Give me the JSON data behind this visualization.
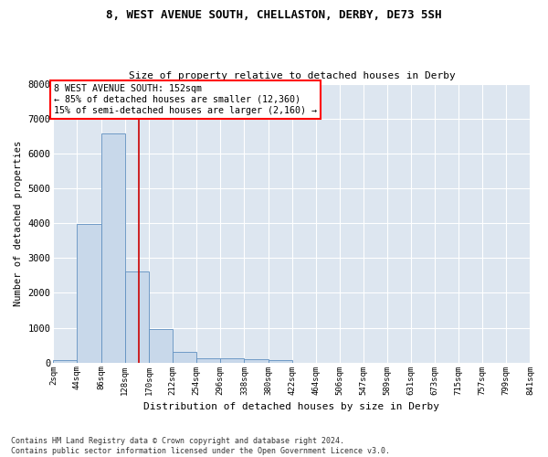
{
  "title": "8, WEST AVENUE SOUTH, CHELLASTON, DERBY, DE73 5SH",
  "subtitle": "Size of property relative to detached houses in Derby",
  "xlabel": "Distribution of detached houses by size in Derby",
  "ylabel": "Number of detached properties",
  "footnote": "Contains HM Land Registry data © Crown copyright and database right 2024.\nContains public sector information licensed under the Open Government Licence v3.0.",
  "bar_color": "#c8d8ea",
  "bar_edge_color": "#6090c0",
  "background_color": "#dde6f0",
  "grid_color": "#ffffff",
  "annotation_text": "8 WEST AVENUE SOUTH: 152sqm\n← 85% of detached houses are smaller (12,360)\n15% of semi-detached houses are larger (2,160) →",
  "property_size": 152,
  "vertical_line_color": "#cc0000",
  "bin_edges": [
    2,
    44,
    86,
    128,
    170,
    212,
    254,
    296,
    338,
    380,
    422,
    464,
    506,
    547,
    589,
    631,
    673,
    715,
    757,
    799,
    841
  ],
  "bar_heights": [
    80,
    3980,
    6560,
    2620,
    960,
    310,
    130,
    130,
    100,
    80,
    0,
    0,
    0,
    0,
    0,
    0,
    0,
    0,
    0,
    0
  ],
  "ylim": [
    0,
    8000
  ],
  "yticks": [
    0,
    1000,
    2000,
    3000,
    4000,
    5000,
    6000,
    7000,
    8000
  ]
}
